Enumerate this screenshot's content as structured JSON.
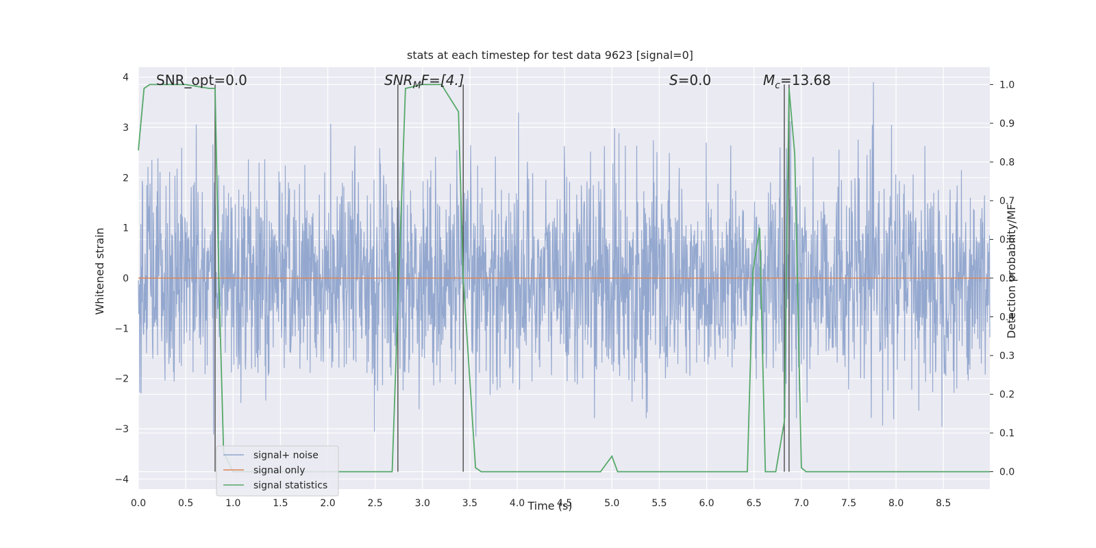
{
  "chart_data": {
    "type": "line",
    "title": "stats at each timestep for test data 9623 [signal=0]",
    "xlabel": "Time (s)",
    "ylabel_left": "Whitened strain",
    "ylabel_right": "Detection probability/MF",
    "xlim": [
      0.0,
      8.99
    ],
    "ylim_left": [
      -4.2,
      4.2
    ],
    "ylim_right": [
      -0.045,
      1.045
    ],
    "xticks": [
      "0.0",
      "0.5",
      "1.0",
      "1.5",
      "2.0",
      "2.5",
      "3.0",
      "3.5",
      "4.0",
      "4.5",
      "5.0",
      "5.5",
      "6.0",
      "6.5",
      "7.0",
      "7.5",
      "8.0",
      "8.5"
    ],
    "yticks_left": [
      "−4",
      "−3",
      "−2",
      "−1",
      "0",
      "1",
      "2",
      "3",
      "4"
    ],
    "yticks_right": [
      "0.0",
      "0.1",
      "0.2",
      "0.3",
      "0.4",
      "0.5",
      "0.6",
      "0.7",
      "0.8",
      "0.9",
      "1.0"
    ],
    "grid": true,
    "legend_placement": "lower-left",
    "annotations": {
      "snr_opt": "SNR_opt=0.0",
      "snr_mf_a": "SNR",
      "snr_mf_sub": "M",
      "snr_mf_b": "F=[4.]",
      "s_a": "S",
      "s_b": "=0.0",
      "mc_a": "M",
      "mc_sub": "c",
      "mc_b": "=13.68"
    },
    "vertical_lines_x": [
      0.81,
      2.74,
      3.43,
      6.82,
      6.87
    ],
    "series": [
      {
        "name": "signal+ noise",
        "color": "#8fa4cc",
        "description_range": [
          -3.6,
          3.9
        ]
      },
      {
        "name": "signal only",
        "color": "#dd8452",
        "x": [
          0.0,
          8.99
        ],
        "y": [
          0.0,
          0.0
        ]
      },
      {
        "name": "signal statistics",
        "color": "#55a868",
        "axis": "right",
        "x": [
          0.0,
          0.06,
          0.12,
          0.25,
          0.5,
          0.75,
          0.81,
          0.85,
          0.9,
          1.0,
          1.5,
          2.0,
          2.5,
          2.68,
          2.75,
          2.82,
          3.0,
          3.2,
          3.38,
          3.43,
          3.56,
          3.62,
          4.0,
          4.5,
          4.88,
          5.0,
          5.06,
          5.5,
          6.0,
          6.43,
          6.49,
          6.56,
          6.62,
          6.73,
          6.82,
          6.87,
          6.93,
          7.0,
          7.05,
          7.2,
          7.5,
          8.0,
          8.5,
          8.99
        ],
        "y": [
          0.83,
          0.99,
          1.0,
          1.0,
          1.0,
          0.99,
          0.99,
          0.5,
          0.05,
          0.0,
          0.0,
          0.0,
          0.0,
          0.0,
          0.5,
          0.99,
          1.0,
          1.0,
          0.93,
          0.5,
          0.01,
          0.0,
          0.0,
          0.0,
          0.0,
          0.04,
          0.0,
          0.0,
          0.0,
          0.0,
          0.52,
          0.63,
          0.0,
          0.0,
          0.13,
          0.99,
          0.82,
          0.01,
          0.0,
          0.0,
          0.0,
          0.0,
          0.0,
          0.0
        ]
      }
    ]
  }
}
